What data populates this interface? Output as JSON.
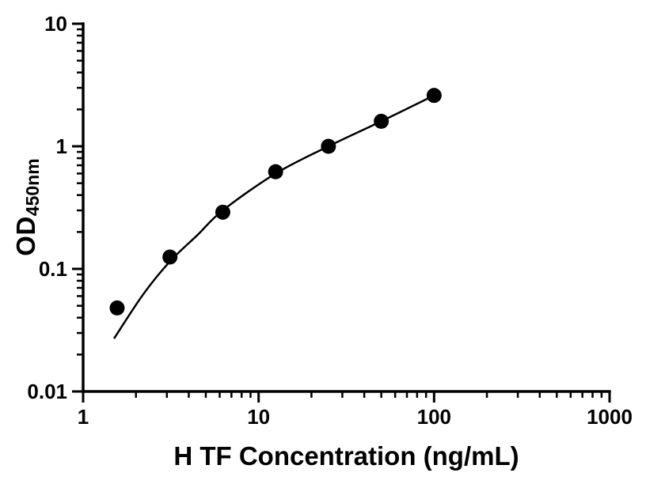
{
  "chart_data": {
    "type": "scatter",
    "title": "",
    "xlabel": "H TF Concentration (ng/mL)",
    "ylabel": "OD",
    "ylabel_sub": "450nm",
    "x_scale": "log",
    "y_scale": "log",
    "xlim": [
      1,
      1000
    ],
    "ylim": [
      0.01,
      10
    ],
    "x_ticks": [
      1,
      10,
      100,
      1000
    ],
    "x_tick_labels": [
      "1",
      "10",
      "100",
      "1000"
    ],
    "y_ticks": [
      0.01,
      0.1,
      1,
      10
    ],
    "y_tick_labels": [
      "0.01",
      "0.1",
      "1",
      "10"
    ],
    "points": {
      "x": [
        1.5625,
        3.125,
        6.25,
        12.5,
        25,
        50,
        100
      ],
      "y": [
        0.048,
        0.125,
        0.29,
        0.62,
        1.0,
        1.6,
        2.6
      ]
    },
    "fit_curve": {
      "x": [
        1.5,
        2.2,
        3.125,
        4.5,
        6.25,
        12.5,
        25,
        50,
        100
      ],
      "y": [
        0.027,
        0.062,
        0.115,
        0.19,
        0.3,
        0.6,
        1.0,
        1.6,
        2.6
      ]
    },
    "marker": {
      "shape": "circle",
      "color": "#000000",
      "radius_px": 9.5
    },
    "line_color": "#000000",
    "axis_color": "#000000",
    "background": "#ffffff",
    "grid": false,
    "legend": null
  }
}
